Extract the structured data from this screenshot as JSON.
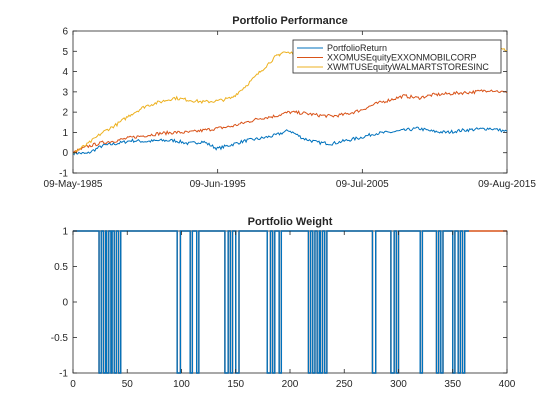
{
  "chart_data": [
    {
      "type": "line",
      "title": "Portfolio Performance",
      "xlabel": "",
      "ylabel": "",
      "x_ticks": [
        "09-May-1985",
        "09-Jun-1995",
        "09-Jul-2005",
        "09-Aug-2015"
      ],
      "xlim": [
        "1985-05-09",
        "2015-08-09"
      ],
      "ylim": [
        -1,
        6
      ],
      "y_ticks": [
        "-1",
        "0",
        "1",
        "2",
        "3",
        "4",
        "5",
        "6"
      ],
      "grid": false,
      "legend_position": "top-right",
      "series": [
        {
          "name": "PortfolioReturn",
          "color": "#0072BD",
          "x": [
            "1985-05-09",
            "1986-05-01",
            "1987-06-01",
            "1988-06-01",
            "1989-06-01",
            "1990-06-01",
            "1991-06-01",
            "1992-06-01",
            "1993-06-01",
            "1994-06-01",
            "1995-06-01",
            "1996-06-01",
            "1997-06-01",
            "1998-06-01",
            "1999-06-01",
            "2000-06-01",
            "2001-06-01",
            "2002-06-01",
            "2003-06-01",
            "2004-06-01",
            "2005-06-01",
            "2006-06-01",
            "2007-06-01",
            "2008-06-01",
            "2009-06-01",
            "2010-06-01",
            "2011-06-01",
            "2012-06-01",
            "2013-06-01",
            "2014-06-01",
            "2015-08-09"
          ],
          "values": [
            0.0,
            -0.05,
            0.35,
            0.45,
            0.6,
            0.55,
            0.6,
            0.6,
            0.45,
            0.55,
            0.2,
            0.4,
            0.6,
            0.7,
            0.85,
            1.1,
            0.7,
            0.5,
            0.45,
            0.6,
            0.75,
            0.95,
            1.0,
            1.1,
            1.2,
            1.05,
            1.0,
            1.1,
            1.15,
            1.2,
            1.05
          ]
        },
        {
          "name": "XXOMUSEquityEXXONMOBILCORP",
          "color": "#D95319",
          "x": [
            "1985-05-09",
            "1986-05-01",
            "1987-06-01",
            "1988-06-01",
            "1989-06-01",
            "1990-06-01",
            "1991-06-01",
            "1992-06-01",
            "1993-06-01",
            "1994-06-01",
            "1995-06-01",
            "1996-06-01",
            "1997-06-01",
            "1998-06-01",
            "1999-06-01",
            "2000-06-01",
            "2001-06-01",
            "2002-06-01",
            "2003-06-01",
            "2004-06-01",
            "2005-06-01",
            "2006-06-01",
            "2007-06-01",
            "2008-06-01",
            "2009-06-01",
            "2010-06-01",
            "2011-06-01",
            "2012-06-01",
            "2013-06-01",
            "2014-06-01",
            "2015-08-09"
          ],
          "values": [
            0.0,
            0.3,
            0.5,
            0.6,
            0.75,
            0.85,
            0.95,
            1.0,
            1.0,
            1.1,
            1.2,
            1.3,
            1.5,
            1.7,
            1.8,
            2.0,
            1.95,
            1.85,
            1.8,
            1.9,
            2.1,
            2.4,
            2.6,
            2.8,
            2.7,
            2.85,
            2.9,
            2.95,
            3.0,
            3.1,
            2.95
          ]
        },
        {
          "name": "XWMTUSEquityWALMARTSTORESINC",
          "color": "#EDB120",
          "x": [
            "1985-05-09",
            "1986-05-01",
            "1987-06-01",
            "1988-06-01",
            "1989-06-01",
            "1990-06-01",
            "1991-06-01",
            "1992-06-01",
            "1993-06-01",
            "1994-06-01",
            "1995-06-01",
            "1996-06-01",
            "1997-06-01",
            "1998-06-01",
            "1999-06-01",
            "2000-01-01",
            "2001-06-01",
            "2002-06-01",
            "2003-06-01",
            "2004-06-01",
            "2005-06-01",
            "2006-06-01",
            "2007-06-01",
            "2008-06-01",
            "2009-06-01",
            "2010-06-01",
            "2011-06-01",
            "2012-06-01",
            "2013-06-01",
            "2014-06-01",
            "2015-08-09"
          ],
          "values": [
            0.0,
            0.4,
            1.0,
            1.4,
            1.9,
            2.3,
            2.5,
            2.7,
            2.6,
            2.5,
            2.55,
            2.7,
            3.3,
            4.0,
            4.7,
            4.95,
            4.85,
            5.0,
            5.05,
            4.95,
            4.9,
            4.85,
            4.9,
            5.0,
            4.9,
            5.0,
            5.05,
            5.1,
            5.2,
            5.15,
            5.05
          ]
        }
      ]
    },
    {
      "type": "line",
      "title": "Portfolio Weight",
      "xlabel": "",
      "ylabel": "",
      "xlim": [
        0,
        400
      ],
      "ylim": [
        -1,
        1
      ],
      "x_ticks": [
        "0",
        "50",
        "100",
        "150",
        "200",
        "250",
        "300",
        "350",
        "400"
      ],
      "y_ticks": [
        "-1",
        "-0.5",
        "0",
        "0.5",
        "1"
      ],
      "grid": false,
      "description_note": "",
      "series": [
        {
          "color": "#0072BD",
          "switch_points": [
            24,
            26,
            28,
            30,
            31,
            33,
            35,
            36,
            38,
            40,
            42,
            44,
            96,
            99,
            108,
            110,
            114,
            116,
            140,
            143,
            145,
            147,
            150,
            153,
            179,
            182,
            184,
            186,
            190,
            192,
            217,
            219,
            221,
            223,
            225,
            227,
            228,
            230,
            232,
            234,
            276,
            279,
            293,
            296,
            298,
            300,
            320,
            322,
            335,
            337,
            339,
            341,
            350,
            352,
            355,
            357,
            359,
            361
          ],
          "initial_value": 1,
          "x_end": 365
        },
        {
          "color": "#D95319",
          "switch_points": [
            24,
            26,
            28,
            30,
            31,
            33,
            35,
            36,
            38,
            40,
            42,
            44,
            96,
            99,
            108,
            110,
            114,
            116,
            140,
            143,
            145,
            147,
            150,
            153,
            179,
            182,
            184,
            186,
            190,
            192,
            217,
            219,
            221,
            223,
            225,
            227,
            228,
            230,
            232,
            234,
            276,
            279,
            293,
            296,
            298,
            300,
            320,
            322,
            335,
            337,
            339,
            341,
            350,
            352,
            355,
            357,
            359,
            361
          ],
          "initial_value": 1,
          "x_end": 400
        }
      ]
    }
  ]
}
